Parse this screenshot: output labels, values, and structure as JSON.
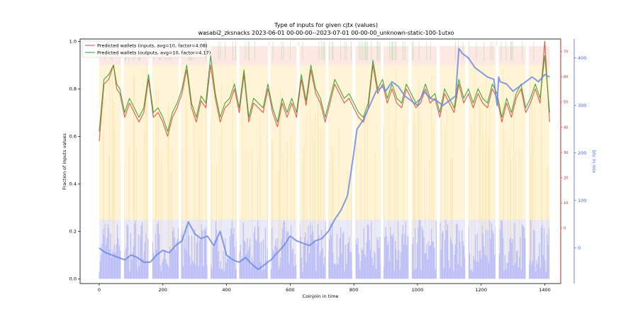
{
  "chart_data": {
    "type": "line",
    "title": "Type of inputs for given cjtx (values)",
    "subtitle": "wasabi2_zksnacks 2023-06-01 00-00-00--2023-07-01 00-00-00_unknown-static-100-1utxo",
    "xlabel": "Coinjoin in time",
    "ylabel": "Fraction of inputs values",
    "ylabel_right": "btc in mix",
    "xlim": [
      -60,
      1450
    ],
    "ylim": [
      -0.02,
      1.01
    ],
    "xticks": [
      "0",
      "200",
      "400",
      "600",
      "800",
      "1000",
      "1200",
      "1400"
    ],
    "yticks": [
      "0.0",
      "0.2",
      "0.4",
      "0.6",
      "0.8",
      "1.0"
    ],
    "y2_red": {
      "ylim": [
        -22,
        75
      ],
      "ticks": [
        "0",
        "10",
        "20",
        "30",
        "40",
        "50",
        "60",
        "70"
      ]
    },
    "y3_blue": {
      "ylim": [
        -75,
        440
      ],
      "ticks": [
        "0",
        "100",
        "200",
        "300",
        "400"
      ]
    },
    "legend_position": "top-left",
    "gaps": [
      [
        68,
        78
      ],
      [
        155,
        167
      ],
      [
        250,
        257
      ],
      [
        340,
        350
      ],
      [
        432,
        440
      ],
      [
        530,
        538
      ],
      [
        620,
        630
      ],
      [
        712,
        720
      ],
      [
        795,
        805
      ],
      [
        885,
        893
      ],
      [
        972,
        982
      ],
      [
        1060,
        1070
      ],
      [
        1150,
        1160
      ],
      [
        1245,
        1255
      ],
      [
        1340,
        1350
      ]
    ],
    "series": [
      {
        "name": "Predicted wallets (inputs, avg=10, factor=4.08)",
        "color": "#e8463a",
        "x": [
          0,
          15,
          30,
          45,
          55,
          65,
          80,
          95,
          110,
          125,
          140,
          155,
          170,
          185,
          200,
          215,
          230,
          245,
          260,
          275,
          290,
          305,
          320,
          335,
          350,
          365,
          380,
          395,
          410,
          425,
          440,
          455,
          470,
          485,
          500,
          515,
          530,
          545,
          560,
          575,
          590,
          605,
          620,
          635,
          650,
          665,
          680,
          695,
          710,
          725,
          740,
          755,
          770,
          785,
          800,
          815,
          830,
          845,
          860,
          875,
          890,
          905,
          920,
          935,
          950,
          965,
          980,
          995,
          1010,
          1025,
          1040,
          1055,
          1070,
          1085,
          1100,
          1115,
          1130,
          1145,
          1160,
          1175,
          1190,
          1205,
          1220,
          1235,
          1250,
          1265,
          1280,
          1295,
          1310,
          1325,
          1340,
          1355,
          1370,
          1385,
          1400,
          1415
        ],
        "y": [
          0.58,
          0.82,
          0.84,
          0.9,
          0.8,
          0.78,
          0.68,
          0.74,
          0.7,
          0.66,
          0.7,
          0.84,
          0.68,
          0.7,
          0.66,
          0.6,
          0.68,
          0.72,
          0.78,
          0.88,
          0.72,
          0.66,
          0.75,
          0.72,
          0.9,
          0.76,
          0.66,
          0.72,
          0.74,
          0.8,
          0.7,
          0.86,
          0.66,
          0.74,
          0.72,
          0.7,
          0.8,
          0.7,
          0.64,
          0.74,
          0.68,
          0.74,
          0.68,
          0.84,
          0.73,
          0.88,
          0.78,
          0.74,
          0.66,
          0.74,
          0.82,
          0.78,
          0.74,
          0.76,
          0.72,
          0.68,
          0.66,
          0.72,
          0.9,
          0.78,
          0.82,
          0.74,
          0.8,
          0.74,
          0.72,
          0.8,
          0.76,
          0.72,
          0.74,
          0.8,
          0.74,
          0.76,
          0.68,
          0.78,
          0.74,
          0.7,
          0.82,
          0.74,
          0.78,
          0.72,
          0.78,
          0.74,
          0.72,
          0.8,
          0.76,
          0.66,
          0.74,
          0.68,
          0.76,
          0.8,
          0.7,
          0.74,
          0.8,
          0.74,
          1.0,
          0.66
        ]
      },
      {
        "name": "Predicted wallets (outputs, avg=10, factor=4.17)",
        "color": "#2ca02c",
        "x": [
          0,
          15,
          30,
          45,
          55,
          65,
          80,
          95,
          110,
          125,
          140,
          155,
          170,
          185,
          200,
          215,
          230,
          245,
          260,
          275,
          290,
          305,
          320,
          335,
          350,
          365,
          380,
          395,
          410,
          425,
          440,
          455,
          470,
          485,
          500,
          515,
          530,
          545,
          560,
          575,
          590,
          605,
          620,
          635,
          650,
          665,
          680,
          695,
          710,
          725,
          740,
          755,
          770,
          785,
          800,
          815,
          830,
          845,
          860,
          875,
          890,
          905,
          920,
          935,
          950,
          965,
          980,
          995,
          1010,
          1025,
          1040,
          1055,
          1070,
          1085,
          1100,
          1115,
          1130,
          1145,
          1160,
          1175,
          1190,
          1205,
          1220,
          1235,
          1250,
          1265,
          1280,
          1295,
          1310,
          1325,
          1340,
          1355,
          1370,
          1385,
          1400,
          1415
        ],
        "y": [
          0.62,
          0.84,
          0.86,
          0.9,
          0.82,
          0.8,
          0.7,
          0.76,
          0.72,
          0.68,
          0.72,
          0.86,
          0.7,
          0.72,
          0.68,
          0.62,
          0.7,
          0.74,
          0.8,
          0.9,
          0.74,
          0.68,
          0.77,
          0.74,
          0.94,
          0.78,
          0.68,
          0.74,
          0.76,
          0.82,
          0.72,
          0.88,
          0.68,
          0.76,
          0.74,
          0.72,
          0.82,
          0.72,
          0.66,
          0.76,
          0.7,
          0.76,
          0.7,
          0.86,
          0.75,
          0.9,
          0.8,
          0.76,
          0.68,
          0.76,
          0.84,
          0.8,
          0.76,
          0.78,
          0.74,
          0.7,
          0.68,
          0.74,
          0.92,
          0.8,
          0.84,
          0.76,
          0.82,
          0.76,
          0.74,
          0.82,
          0.78,
          0.74,
          0.76,
          0.82,
          0.76,
          0.78,
          0.7,
          0.8,
          0.76,
          0.72,
          0.84,
          0.76,
          0.8,
          0.74,
          0.8,
          0.76,
          0.74,
          0.82,
          0.78,
          0.68,
          0.76,
          0.7,
          0.78,
          0.82,
          0.72,
          0.76,
          0.82,
          0.76,
          0.94,
          0.7
        ]
      },
      {
        "color": "#6f8ae0",
        "axis": "y3",
        "x": [
          0,
          20,
          40,
          60,
          80,
          100,
          120,
          140,
          160,
          180,
          200,
          220,
          240,
          260,
          280,
          300,
          320,
          340,
          360,
          380,
          400,
          420,
          440,
          460,
          480,
          500,
          520,
          540,
          560,
          580,
          600,
          620,
          640,
          660,
          680,
          700,
          720,
          740,
          760,
          780,
          800,
          810,
          830,
          850,
          870,
          890,
          900,
          920,
          940,
          960,
          980,
          1000,
          1020,
          1040,
          1060,
          1080,
          1100,
          1120,
          1130,
          1135,
          1140,
          1160,
          1180,
          1200,
          1220,
          1240,
          1250,
          1255,
          1260,
          1280,
          1300,
          1320,
          1340,
          1360,
          1380,
          1400,
          1415
        ],
        "y": [
          0,
          -10,
          -15,
          -20,
          -25,
          -15,
          -20,
          -30,
          -30,
          -15,
          -5,
          -10,
          5,
          15,
          55,
          30,
          20,
          25,
          5,
          35,
          -15,
          -25,
          -30,
          -20,
          -35,
          -45,
          -35,
          -25,
          -10,
          5,
          25,
          15,
          10,
          5,
          15,
          20,
          35,
          60,
          80,
          110,
          200,
          250,
          270,
          300,
          330,
          340,
          330,
          350,
          340,
          320,
          310,
          300,
          330,
          315,
          310,
          300,
          310,
          320,
          420,
          415,
          410,
          400,
          380,
          370,
          360,
          355,
          300,
          360,
          350,
          345,
          330,
          340,
          350,
          360,
          350,
          365,
          360
        ]
      }
    ]
  }
}
